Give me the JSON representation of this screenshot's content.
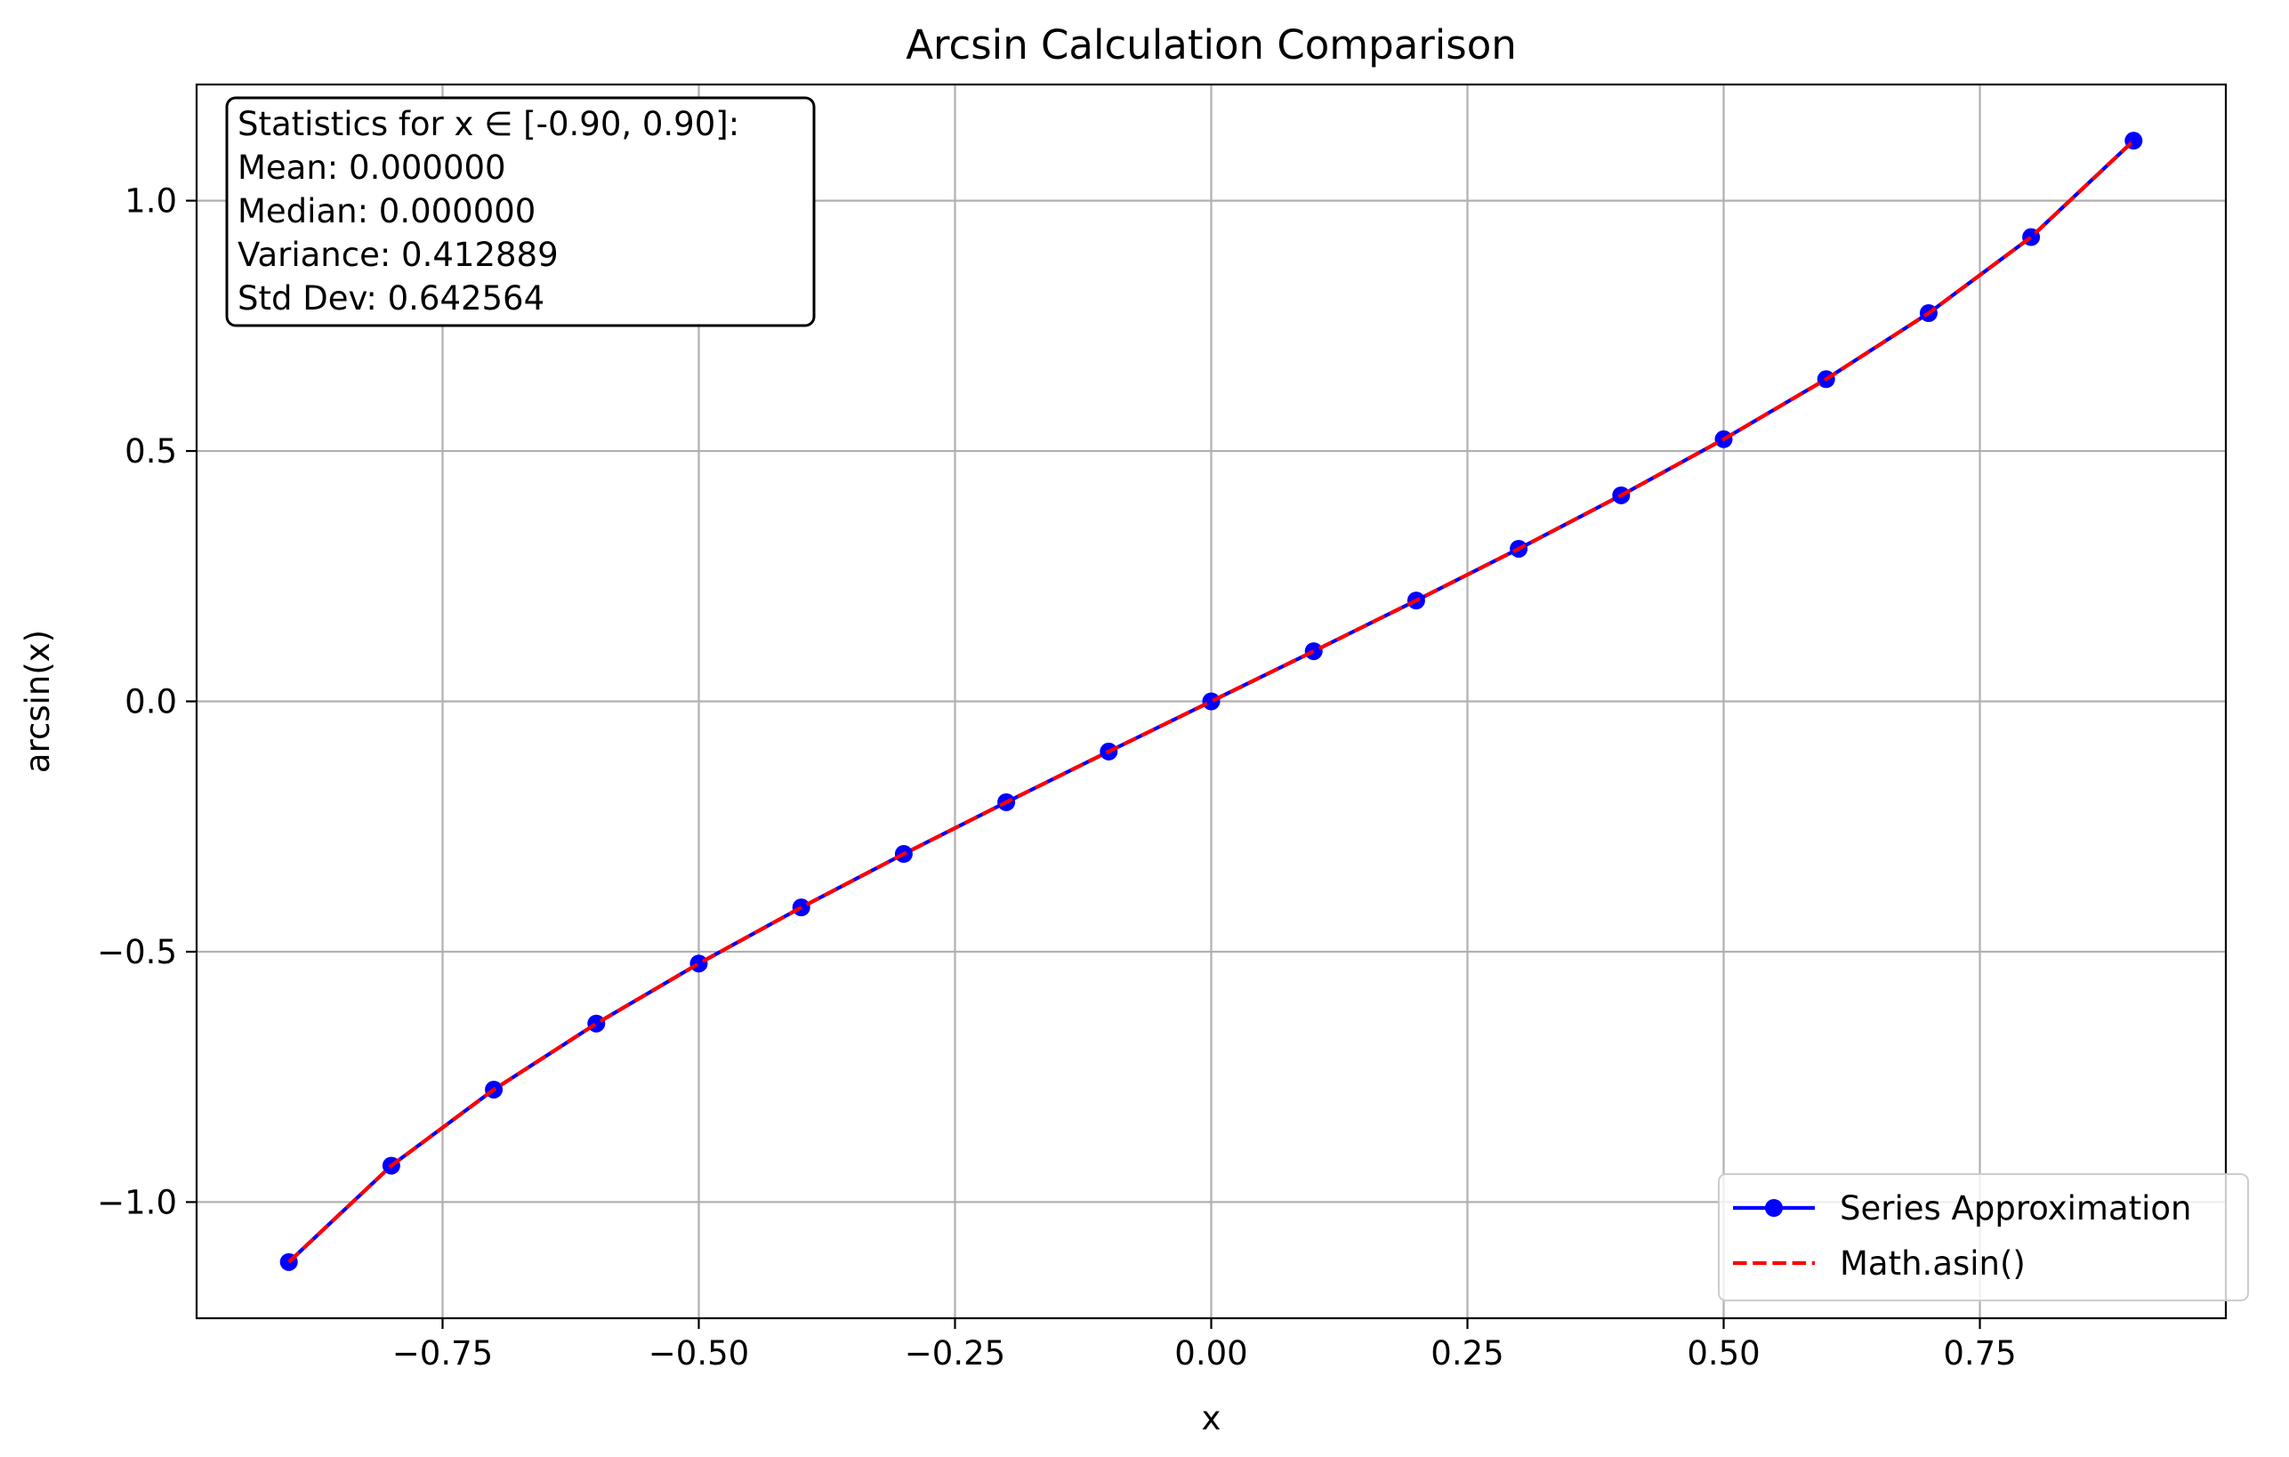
{
  "colors": {
    "series_approx": "#0000ff",
    "math_asin": "#ff0000",
    "grid": "#b0b0b0"
  },
  "chart_data": {
    "type": "line",
    "title": "Arcsin Calculation Comparison",
    "xlabel": "x",
    "ylabel": "arcsin(x)",
    "xlim": [
      -0.99,
      0.99
    ],
    "ylim": [
      -1.232,
      1.232
    ],
    "grid": true,
    "legend_position": "lower right",
    "x_ticks": [
      -0.75,
      -0.5,
      -0.25,
      0.0,
      0.25,
      0.5,
      0.75
    ],
    "x_tick_labels": [
      "−0.75",
      "−0.50",
      "−0.25",
      "0.00",
      "0.25",
      "0.50",
      "0.75"
    ],
    "y_ticks": [
      -1.0,
      -0.5,
      0.0,
      0.5,
      1.0
    ],
    "y_tick_labels": [
      "−1.0",
      "−0.5",
      "0.0",
      "0.5",
      "1.0"
    ],
    "x": [
      -0.9,
      -0.8,
      -0.7,
      -0.6,
      -0.5,
      -0.4,
      -0.3,
      -0.2,
      -0.1,
      0.0,
      0.1,
      0.2,
      0.3,
      0.4,
      0.5,
      0.6,
      0.7,
      0.8,
      0.9
    ],
    "series": [
      {
        "name": "Series Approximation",
        "style": "solid-line-with-circle-markers",
        "values": [
          -1.1198,
          -0.9273,
          -0.7754,
          -0.6435,
          -0.5236,
          -0.4115,
          -0.3047,
          -0.2014,
          -0.1002,
          0.0,
          0.1002,
          0.2014,
          0.3047,
          0.4115,
          0.5236,
          0.6435,
          0.7754,
          0.9273,
          1.1198
        ]
      },
      {
        "name": "Math.asin()",
        "style": "dashed-line",
        "values": [
          -1.1198,
          -0.9273,
          -0.7754,
          -0.6435,
          -0.5236,
          -0.4115,
          -0.3047,
          -0.2014,
          -0.1002,
          0.0,
          0.1002,
          0.2014,
          0.3047,
          0.4115,
          0.5236,
          0.6435,
          0.7754,
          0.9273,
          1.1198
        ]
      }
    ],
    "annotations": [
      "Statistics for x ∈ [-0.90, 0.90]:",
      "Mean: 0.000000",
      "Median: 0.000000",
      "Variance: 0.412889",
      "Std Dev: 0.642564"
    ]
  }
}
